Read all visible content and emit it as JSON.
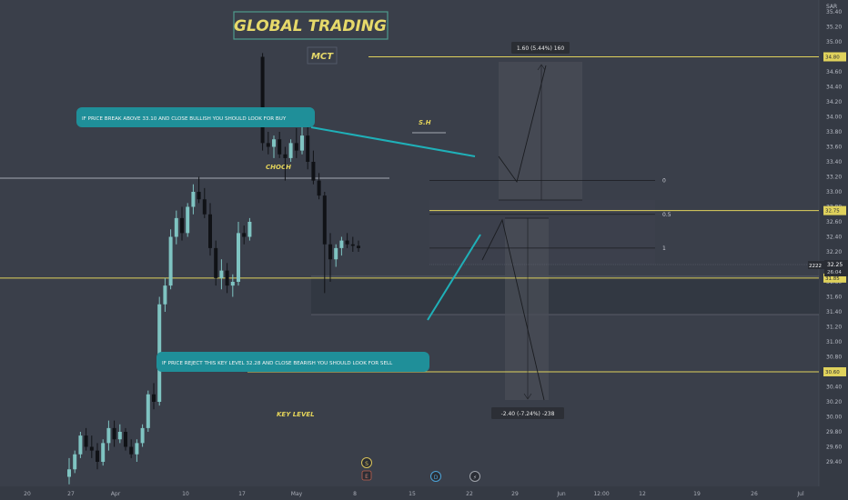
{
  "header": {
    "title": "GLOBAL TRADING",
    "subtitle": "MCT"
  },
  "currency": "SAR",
  "chart_data": {
    "type": "candlestick",
    "y_ticks": [
      "35.40",
      "35.20",
      "35.00",
      "34.80",
      "34.60",
      "34.40",
      "34.20",
      "34.00",
      "33.80",
      "33.60",
      "33.40",
      "33.20",
      "33.00",
      "32.80",
      "32.60",
      "32.40",
      "32.20",
      "32.00",
      "31.80",
      "31.60",
      "31.40",
      "31.20",
      "31.00",
      "30.80",
      "30.60",
      "30.40",
      "30.20",
      "30.00",
      "29.80",
      "29.60",
      "29.40"
    ],
    "x_ticks": [
      "20",
      "27",
      "Apr",
      "10",
      "17",
      "May",
      "8",
      "15",
      "22",
      "29",
      "Jun",
      "12:00",
      "12",
      "19",
      "26",
      "Jul"
    ],
    "ylim": [
      29.3,
      35.6
    ],
    "candles": [
      {
        "o": 29.2,
        "h": 29.45,
        "l": 29.1,
        "c": 29.3
      },
      {
        "o": 29.3,
        "h": 29.55,
        "l": 29.25,
        "c": 29.5
      },
      {
        "o": 29.5,
        "h": 29.8,
        "l": 29.45,
        "c": 29.75
      },
      {
        "o": 29.75,
        "h": 29.85,
        "l": 29.55,
        "c": 29.6
      },
      {
        "o": 29.6,
        "h": 29.75,
        "l": 29.45,
        "c": 29.55
      },
      {
        "o": 29.55,
        "h": 29.65,
        "l": 29.3,
        "c": 29.4
      },
      {
        "o": 29.4,
        "h": 29.7,
        "l": 29.35,
        "c": 29.65
      },
      {
        "o": 29.65,
        "h": 29.95,
        "l": 29.55,
        "c": 29.85
      },
      {
        "o": 29.85,
        "h": 29.95,
        "l": 29.6,
        "c": 29.7
      },
      {
        "o": 29.7,
        "h": 29.9,
        "l": 29.65,
        "c": 29.8
      },
      {
        "o": 29.8,
        "h": 29.85,
        "l": 29.55,
        "c": 29.6
      },
      {
        "o": 29.6,
        "h": 29.7,
        "l": 29.45,
        "c": 29.5
      },
      {
        "o": 29.5,
        "h": 29.7,
        "l": 29.4,
        "c": 29.65
      },
      {
        "o": 29.65,
        "h": 29.9,
        "l": 29.6,
        "c": 29.85
      },
      {
        "o": 29.85,
        "h": 30.35,
        "l": 29.8,
        "c": 30.3
      },
      {
        "o": 30.3,
        "h": 30.45,
        "l": 30.1,
        "c": 30.2
      },
      {
        "o": 30.2,
        "h": 31.6,
        "l": 30.15,
        "c": 31.5
      },
      {
        "o": 31.5,
        "h": 31.85,
        "l": 31.4,
        "c": 31.75
      },
      {
        "o": 31.75,
        "h": 32.5,
        "l": 31.7,
        "c": 32.4
      },
      {
        "o": 32.4,
        "h": 32.75,
        "l": 32.3,
        "c": 32.65
      },
      {
        "o": 32.65,
        "h": 32.8,
        "l": 32.35,
        "c": 32.45
      },
      {
        "o": 32.45,
        "h": 32.85,
        "l": 32.4,
        "c": 32.8
      },
      {
        "o": 32.8,
        "h": 33.1,
        "l": 32.7,
        "c": 33.0
      },
      {
        "o": 33.0,
        "h": 33.2,
        "l": 32.85,
        "c": 32.9
      },
      {
        "o": 32.9,
        "h": 33.05,
        "l": 32.65,
        "c": 32.7
      },
      {
        "o": 32.7,
        "h": 32.85,
        "l": 32.15,
        "c": 32.25
      },
      {
        "o": 32.25,
        "h": 32.35,
        "l": 31.75,
        "c": 31.85
      },
      {
        "o": 31.85,
        "h": 32.1,
        "l": 31.7,
        "c": 31.95
      },
      {
        "o": 31.95,
        "h": 32.05,
        "l": 31.65,
        "c": 31.75
      },
      {
        "o": 31.75,
        "h": 31.9,
        "l": 31.6,
        "c": 31.8
      },
      {
        "o": 31.8,
        "h": 32.6,
        "l": 31.75,
        "c": 32.45
      },
      {
        "o": 32.45,
        "h": 32.55,
        "l": 32.3,
        "c": 32.4
      },
      {
        "o": 32.4,
        "h": 32.65,
        "l": 32.35,
        "c": 32.6
      },
      {
        "o": 34.8,
        "h": 34.85,
        "l": 33.55,
        "c": 33.65
      },
      {
        "o": 33.65,
        "h": 33.8,
        "l": 33.5,
        "c": 33.6
      },
      {
        "o": 33.6,
        "h": 33.75,
        "l": 33.45,
        "c": 33.7
      },
      {
        "o": 33.7,
        "h": 33.8,
        "l": 33.45,
        "c": 33.5
      },
      {
        "o": 33.5,
        "h": 33.6,
        "l": 33.15,
        "c": 33.45
      },
      {
        "o": 33.45,
        "h": 33.7,
        "l": 33.4,
        "c": 33.65
      },
      {
        "o": 33.65,
        "h": 33.85,
        "l": 33.45,
        "c": 33.55
      },
      {
        "o": 33.55,
        "h": 33.9,
        "l": 33.5,
        "c": 33.75
      },
      {
        "o": 33.75,
        "h": 33.95,
        "l": 33.3,
        "c": 33.4
      },
      {
        "o": 33.4,
        "h": 33.55,
        "l": 33.1,
        "c": 33.15
      },
      {
        "o": 33.15,
        "h": 33.25,
        "l": 32.9,
        "c": 32.95
      },
      {
        "o": 32.95,
        "h": 33.0,
        "l": 31.65,
        "c": 32.3
      },
      {
        "o": 32.3,
        "h": 32.45,
        "l": 31.8,
        "c": 32.1
      },
      {
        "o": 32.1,
        "h": 32.3,
        "l": 32.0,
        "c": 32.25
      },
      {
        "o": 32.25,
        "h": 32.4,
        "l": 32.15,
        "c": 32.35
      },
      {
        "o": 32.35,
        "h": 32.45,
        "l": 32.25,
        "c": 32.3
      },
      {
        "o": 32.3,
        "h": 32.4,
        "l": 32.2,
        "c": 32.28
      },
      {
        "o": 32.28,
        "h": 32.35,
        "l": 32.2,
        "c": 32.25
      }
    ],
    "levels": [
      {
        "value": 34.8,
        "label": "34.80"
      },
      {
        "value": 32.75,
        "label": "32.75"
      },
      {
        "value": 31.85,
        "label": "31.85"
      },
      {
        "value": 30.6,
        "label": "30.60"
      }
    ],
    "fib": [
      {
        "ratio": "0",
        "value": 33.15
      },
      {
        "ratio": "0.5",
        "value": 32.7
      },
      {
        "ratio": "1",
        "value": 32.25
      }
    ],
    "price_now": {
      "label": "32.25",
      "countdown": "26:04",
      "value": 32.25,
      "series_tag": "2222"
    },
    "long_box_label": "1.60 (5.44%) 160",
    "short_box_label": "-2.40 (-7.24%) -238",
    "annotations": {
      "buy": "IF PRICE BREAK ABOVE 33.10 AND CLOSE BULLISH YOU SHOULD LOOK FOR BUY",
      "sell": "IF PRICE REJECT THIS KEY LEVEL 32.28 AND CLOSE BEARISH YOU SHOULD LOOK FOR SELL"
    },
    "tags": {
      "choch": "CHOCH",
      "sh": "S.H",
      "key_level": "KEY LEVEL"
    },
    "event_markers": [
      "S",
      "E",
      "D",
      "⚡"
    ],
    "colors": {
      "background": "#3a3f4a",
      "candle_up": "#7fc4c2",
      "candle_down": "#101216",
      "level_line": "#e0d25c",
      "annotation_bg": "#1f8f99",
      "title_border": "#4e9a8c",
      "title_text": "#e6d96a"
    }
  }
}
